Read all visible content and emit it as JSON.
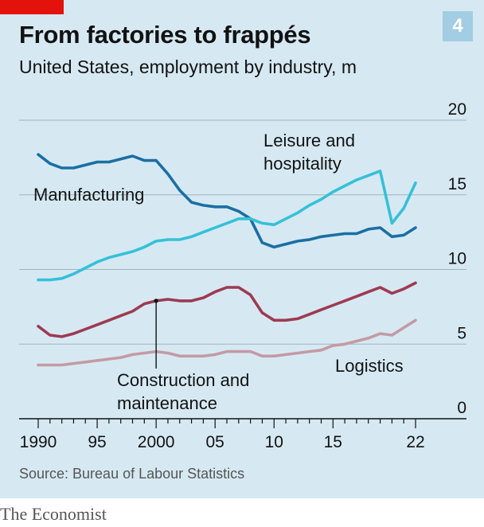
{
  "header": {
    "title": "From factories to frappés",
    "subtitle": "United States, employment by industry, m",
    "badge": "4"
  },
  "footer": {
    "source": "Source: Bureau of Labour Statistics",
    "brand": "The Economist"
  },
  "colors": {
    "manufacturing": "#1a6fa3",
    "leisure": "#36c0d8",
    "construction": "#9e3a52",
    "logistics": "#c49aa4",
    "grid": "#9fb3bf",
    "accent": "#e3120b"
  },
  "chart_data": {
    "type": "line",
    "x": [
      1990,
      1991,
      1992,
      1993,
      1994,
      1995,
      1996,
      1997,
      1998,
      1999,
      2000,
      2001,
      2002,
      2003,
      2004,
      2005,
      2006,
      2007,
      2008,
      2009,
      2010,
      2011,
      2012,
      2013,
      2014,
      2015,
      2016,
      2017,
      2018,
      2019,
      2020,
      2021,
      2022
    ],
    "x_ticks": [
      1990,
      1995,
      2000,
      2005,
      2010,
      2015,
      2022
    ],
    "x_tick_labels": [
      "1990",
      "95",
      "2000",
      "05",
      "10",
      "15",
      "22"
    ],
    "y_ticks": [
      0,
      5,
      10,
      15,
      20
    ],
    "y_tick_labels": [
      "0",
      "5",
      "10",
      "15",
      "20"
    ],
    "ylim": [
      0,
      20
    ],
    "xlim": [
      1990,
      2022
    ],
    "grid": true,
    "series": [
      {
        "name": "Manufacturing",
        "key": "manufacturing",
        "values": [
          17.7,
          17.1,
          16.8,
          16.8,
          17.0,
          17.2,
          17.2,
          17.4,
          17.6,
          17.3,
          17.3,
          16.4,
          15.3,
          14.5,
          14.3,
          14.2,
          14.2,
          13.9,
          13.4,
          11.8,
          11.5,
          11.7,
          11.9,
          12.0,
          12.2,
          12.3,
          12.4,
          12.4,
          12.7,
          12.8,
          12.2,
          12.3,
          12.8
        ]
      },
      {
        "name": "Leisure and hospitality",
        "key": "leisure",
        "values": [
          9.3,
          9.3,
          9.4,
          9.7,
          10.1,
          10.5,
          10.8,
          11.0,
          11.2,
          11.5,
          11.9,
          12.0,
          12.0,
          12.2,
          12.5,
          12.8,
          13.1,
          13.4,
          13.4,
          13.1,
          13.0,
          13.4,
          13.8,
          14.3,
          14.7,
          15.2,
          15.6,
          16.0,
          16.3,
          16.6,
          13.1,
          14.1,
          15.8
        ]
      },
      {
        "name": "Construction and maintenance",
        "key": "construction",
        "values": [
          6.2,
          5.6,
          5.5,
          5.7,
          6.0,
          6.3,
          6.6,
          6.9,
          7.2,
          7.7,
          7.9,
          8.0,
          7.9,
          7.9,
          8.1,
          8.5,
          8.8,
          8.8,
          8.3,
          7.1,
          6.6,
          6.6,
          6.7,
          7.0,
          7.3,
          7.6,
          7.9,
          8.2,
          8.5,
          8.8,
          8.4,
          8.7,
          9.1
        ]
      },
      {
        "name": "Logistics",
        "key": "logistics",
        "values": [
          3.6,
          3.6,
          3.6,
          3.7,
          3.8,
          3.9,
          4.0,
          4.1,
          4.3,
          4.4,
          4.5,
          4.4,
          4.2,
          4.2,
          4.2,
          4.3,
          4.5,
          4.5,
          4.5,
          4.2,
          4.2,
          4.3,
          4.4,
          4.5,
          4.6,
          4.9,
          5.0,
          5.2,
          5.4,
          5.7,
          5.6,
          6.1,
          6.6
        ]
      }
    ],
    "annotations": [
      {
        "key": "manufacturing",
        "lines": [
          "Manufacturing"
        ]
      },
      {
        "key": "leisure",
        "lines": [
          "Leisure and",
          "hospitality"
        ]
      },
      {
        "key": "construction",
        "lines": [
          "Construction and",
          "maintenance"
        ],
        "pointer_x": 2000
      },
      {
        "key": "logistics",
        "lines": [
          "Logistics"
        ]
      }
    ]
  }
}
